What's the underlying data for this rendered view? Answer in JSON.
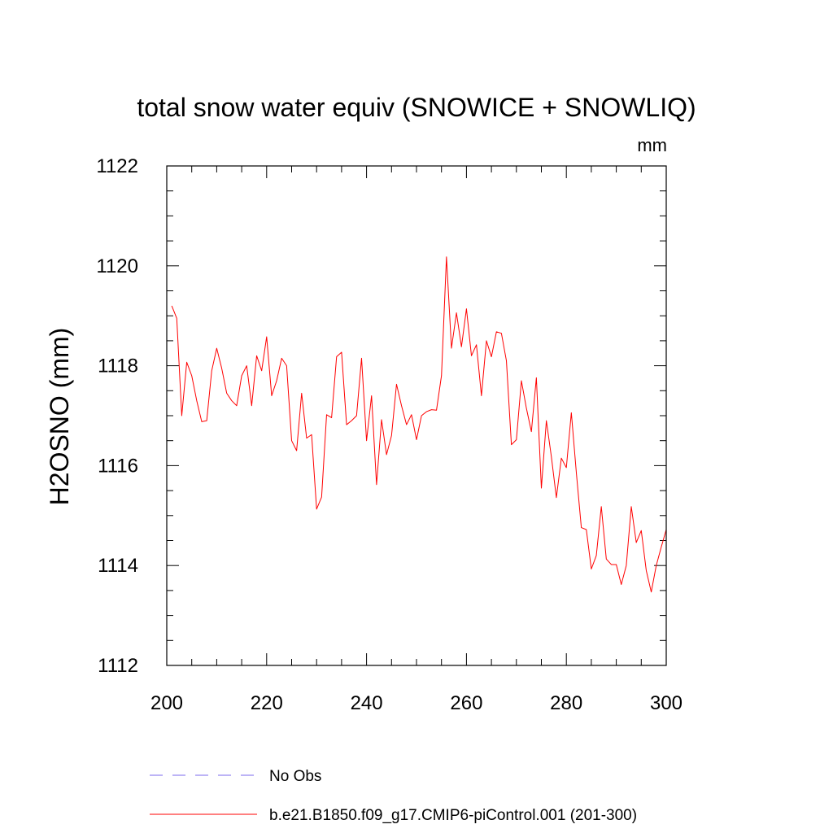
{
  "chart_data": {
    "type": "line",
    "title": "total snow water equiv (SNOWICE + SNOWLIQ)",
    "units_label": "mm",
    "ylabel": "H2OSNO  (mm)",
    "xlabel": "",
    "xlim": [
      200,
      300
    ],
    "ylim": [
      1112,
      1122
    ],
    "x_ticks": [
      200,
      220,
      240,
      260,
      280,
      300
    ],
    "x_tick_labels": [
      "200",
      "220",
      "240",
      "260",
      "280",
      "300"
    ],
    "y_ticks": [
      1112,
      1114,
      1116,
      1118,
      1120,
      1122
    ],
    "y_tick_labels": [
      "1112",
      "1114",
      "1116",
      "1118",
      "1120",
      "1122"
    ],
    "x_minor_step": 5,
    "y_minor_step": 0.5,
    "grid": false,
    "legend": {
      "placement": "bottom",
      "entries": [
        {
          "label": "No Obs",
          "color": "#7b68ee",
          "style": "dashed"
        },
        {
          "label": "b.e21.B1850.f09_g17.CMIP6-piControl.001 (201-300)",
          "color": "#ff0000",
          "style": "solid"
        }
      ]
    },
    "series": [
      {
        "name": "b.e21.B1850.f09_g17.CMIP6-piControl.001 (201-300)",
        "color": "#ff0000",
        "x": [
          201,
          202,
          203,
          204,
          205,
          206,
          207,
          208,
          209,
          210,
          211,
          212,
          213,
          214,
          215,
          216,
          217,
          218,
          219,
          220,
          221,
          222,
          223,
          224,
          225,
          226,
          227,
          228,
          229,
          230,
          231,
          232,
          233,
          234,
          235,
          236,
          237,
          238,
          239,
          240,
          241,
          242,
          243,
          244,
          245,
          246,
          247,
          248,
          249,
          250,
          251,
          252,
          253,
          254,
          255,
          256,
          257,
          258,
          259,
          260,
          261,
          262,
          263,
          264,
          265,
          266,
          267,
          268,
          269,
          270,
          271,
          272,
          273,
          274,
          275,
          276,
          277,
          278,
          279,
          280,
          281,
          282,
          283,
          284,
          285,
          286,
          287,
          288,
          289,
          290,
          291,
          292,
          293,
          294,
          295,
          296,
          297,
          298,
          299,
          300
        ],
        "values": [
          1119.2,
          1118.95,
          1117.0,
          1118.07,
          1117.8,
          1117.3,
          1116.88,
          1116.9,
          1117.9,
          1118.35,
          1117.95,
          1117.45,
          1117.3,
          1117.2,
          1117.8,
          1118.0,
          1117.2,
          1118.2,
          1117.9,
          1118.58,
          1117.4,
          1117.7,
          1118.15,
          1118.0,
          1116.5,
          1116.3,
          1117.45,
          1116.55,
          1116.62,
          1115.13,
          1115.37,
          1117.02,
          1116.96,
          1118.18,
          1118.27,
          1116.82,
          1116.9,
          1117.0,
          1118.15,
          1116.5,
          1117.4,
          1115.62,
          1116.92,
          1116.22,
          1116.6,
          1117.63,
          1117.2,
          1116.82,
          1117.02,
          1116.52,
          1117.0,
          1117.08,
          1117.12,
          1117.11,
          1117.8,
          1120.18,
          1118.35,
          1119.06,
          1118.38,
          1119.14,
          1118.2,
          1118.42,
          1117.4,
          1118.5,
          1118.18,
          1118.68,
          1118.65,
          1118.1,
          1116.42,
          1116.52,
          1117.7,
          1117.15,
          1116.68,
          1117.76,
          1115.55,
          1116.9,
          1116.18,
          1115.36,
          1116.15,
          1115.96,
          1117.06,
          1115.86,
          1114.76,
          1114.72,
          1113.93,
          1114.2,
          1115.18,
          1114.13,
          1114.02,
          1114.02,
          1113.62,
          1114.0,
          1115.18,
          1114.46,
          1114.7,
          1113.9,
          1113.47,
          1114.0,
          1114.37,
          1114.72
        ]
      }
    ]
  }
}
